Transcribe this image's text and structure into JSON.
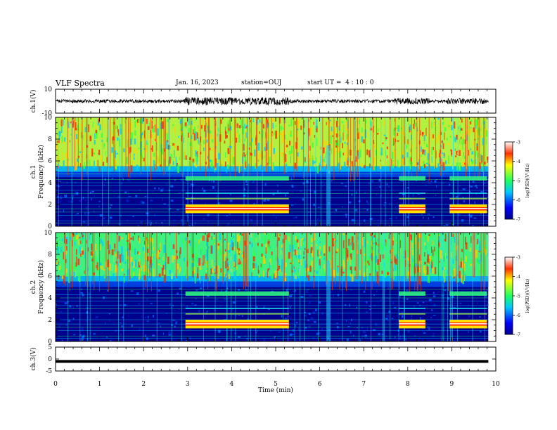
{
  "header": {
    "title": "VLF Spectra",
    "date": "Jan. 16, 2023",
    "station": "station=OUJ",
    "start": "start UT =  4 : 10 : 0"
  },
  "chart_data": [
    {
      "type": "line",
      "panel": "ch1-waveform",
      "ylabel": "ch.1(V)",
      "yticks": [
        "10",
        "-10"
      ],
      "ylim": [
        -10,
        10
      ],
      "description_values": {
        "baseline_V": 0
      }
    },
    {
      "type": "heatmap",
      "panel": "ch1-spectrogram",
      "ylabel": "ch.1\nFrequency (kHz)",
      "ylabel_lines": [
        "ch.1",
        "Frequency (kHz)"
      ],
      "yticks": [
        "0",
        "2",
        "4",
        "6",
        "8",
        "10"
      ],
      "ylim": [
        0,
        10
      ],
      "colorbar": {
        "label": "log(PSD)(V²/Hz)",
        "ticks": [
          "-3",
          "-4",
          "-5",
          "-6",
          "-7"
        ],
        "range": [
          -7,
          -3
        ]
      }
    },
    {
      "type": "heatmap",
      "panel": "ch2-spectrogram",
      "ylabel_lines": [
        "ch.2",
        "Frequency (kHz)"
      ],
      "yticks": [
        "0",
        "2",
        "4",
        "6",
        "8",
        "10"
      ],
      "ylim": [
        0,
        10
      ],
      "colorbar": {
        "label": "log(PSD)(V²/Hz)",
        "ticks": [
          "-3",
          "-4",
          "-5",
          "-6",
          "-7"
        ],
        "range": [
          -7,
          -3
        ]
      }
    },
    {
      "type": "line",
      "panel": "ch3-waveform",
      "ylabel": "ch.3(V)",
      "yticks": [
        "5",
        "0",
        "-5"
      ],
      "ylim": [
        -5,
        5
      ],
      "x": [
        0,
        9.83
      ],
      "y": [
        -1,
        -1
      ]
    }
  ],
  "xaxis": {
    "xlabel": "Time (min)",
    "ticks": [
      "0",
      "1",
      "2",
      "3",
      "4",
      "5",
      "6",
      "7",
      "8",
      "9",
      "10"
    ],
    "xlim": [
      0,
      10
    ]
  },
  "colors": {
    "background": "#ffffff",
    "axis": "#000000"
  }
}
